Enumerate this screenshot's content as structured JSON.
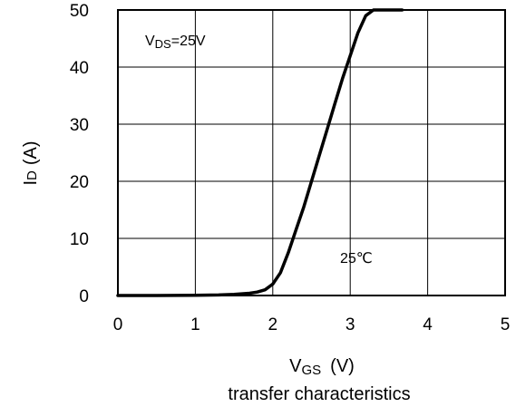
{
  "chart_data": {
    "type": "line",
    "title": "transfer characteristics",
    "xlabel": {
      "main": "V",
      "sub": "GS",
      "unit": "(V)"
    },
    "ylabel": {
      "main": "I",
      "sub": "D",
      "unit": "(A)"
    },
    "xlim": [
      0,
      5
    ],
    "ylim": [
      0,
      50
    ],
    "xticks": [
      "0",
      "1",
      "2",
      "3",
      "4",
      "5"
    ],
    "yticks": [
      "0",
      "10",
      "20",
      "30",
      "40",
      "50"
    ],
    "grid": true,
    "condition": {
      "main": "V",
      "sub": "DS",
      "rest": "=25V"
    },
    "series": [
      {
        "name": "25℃",
        "x": [
          0,
          0.5,
          1.0,
          1.3,
          1.5,
          1.7,
          1.8,
          1.9,
          2.0,
          2.1,
          2.2,
          2.3,
          2.4,
          2.5,
          2.6,
          2.7,
          2.8,
          2.9,
          3.0,
          3.1,
          3.2,
          3.3,
          3.4,
          3.5,
          3.6,
          3.67
        ],
        "y": [
          0,
          0,
          0.05,
          0.1,
          0.2,
          0.4,
          0.6,
          1.0,
          2.0,
          4.0,
          7.5,
          11.5,
          15.5,
          20.0,
          24.5,
          29.0,
          33.5,
          38.0,
          42.0,
          46.0,
          49.0,
          50.0,
          50.0,
          50.0,
          50.0,
          50.0
        ]
      }
    ]
  }
}
